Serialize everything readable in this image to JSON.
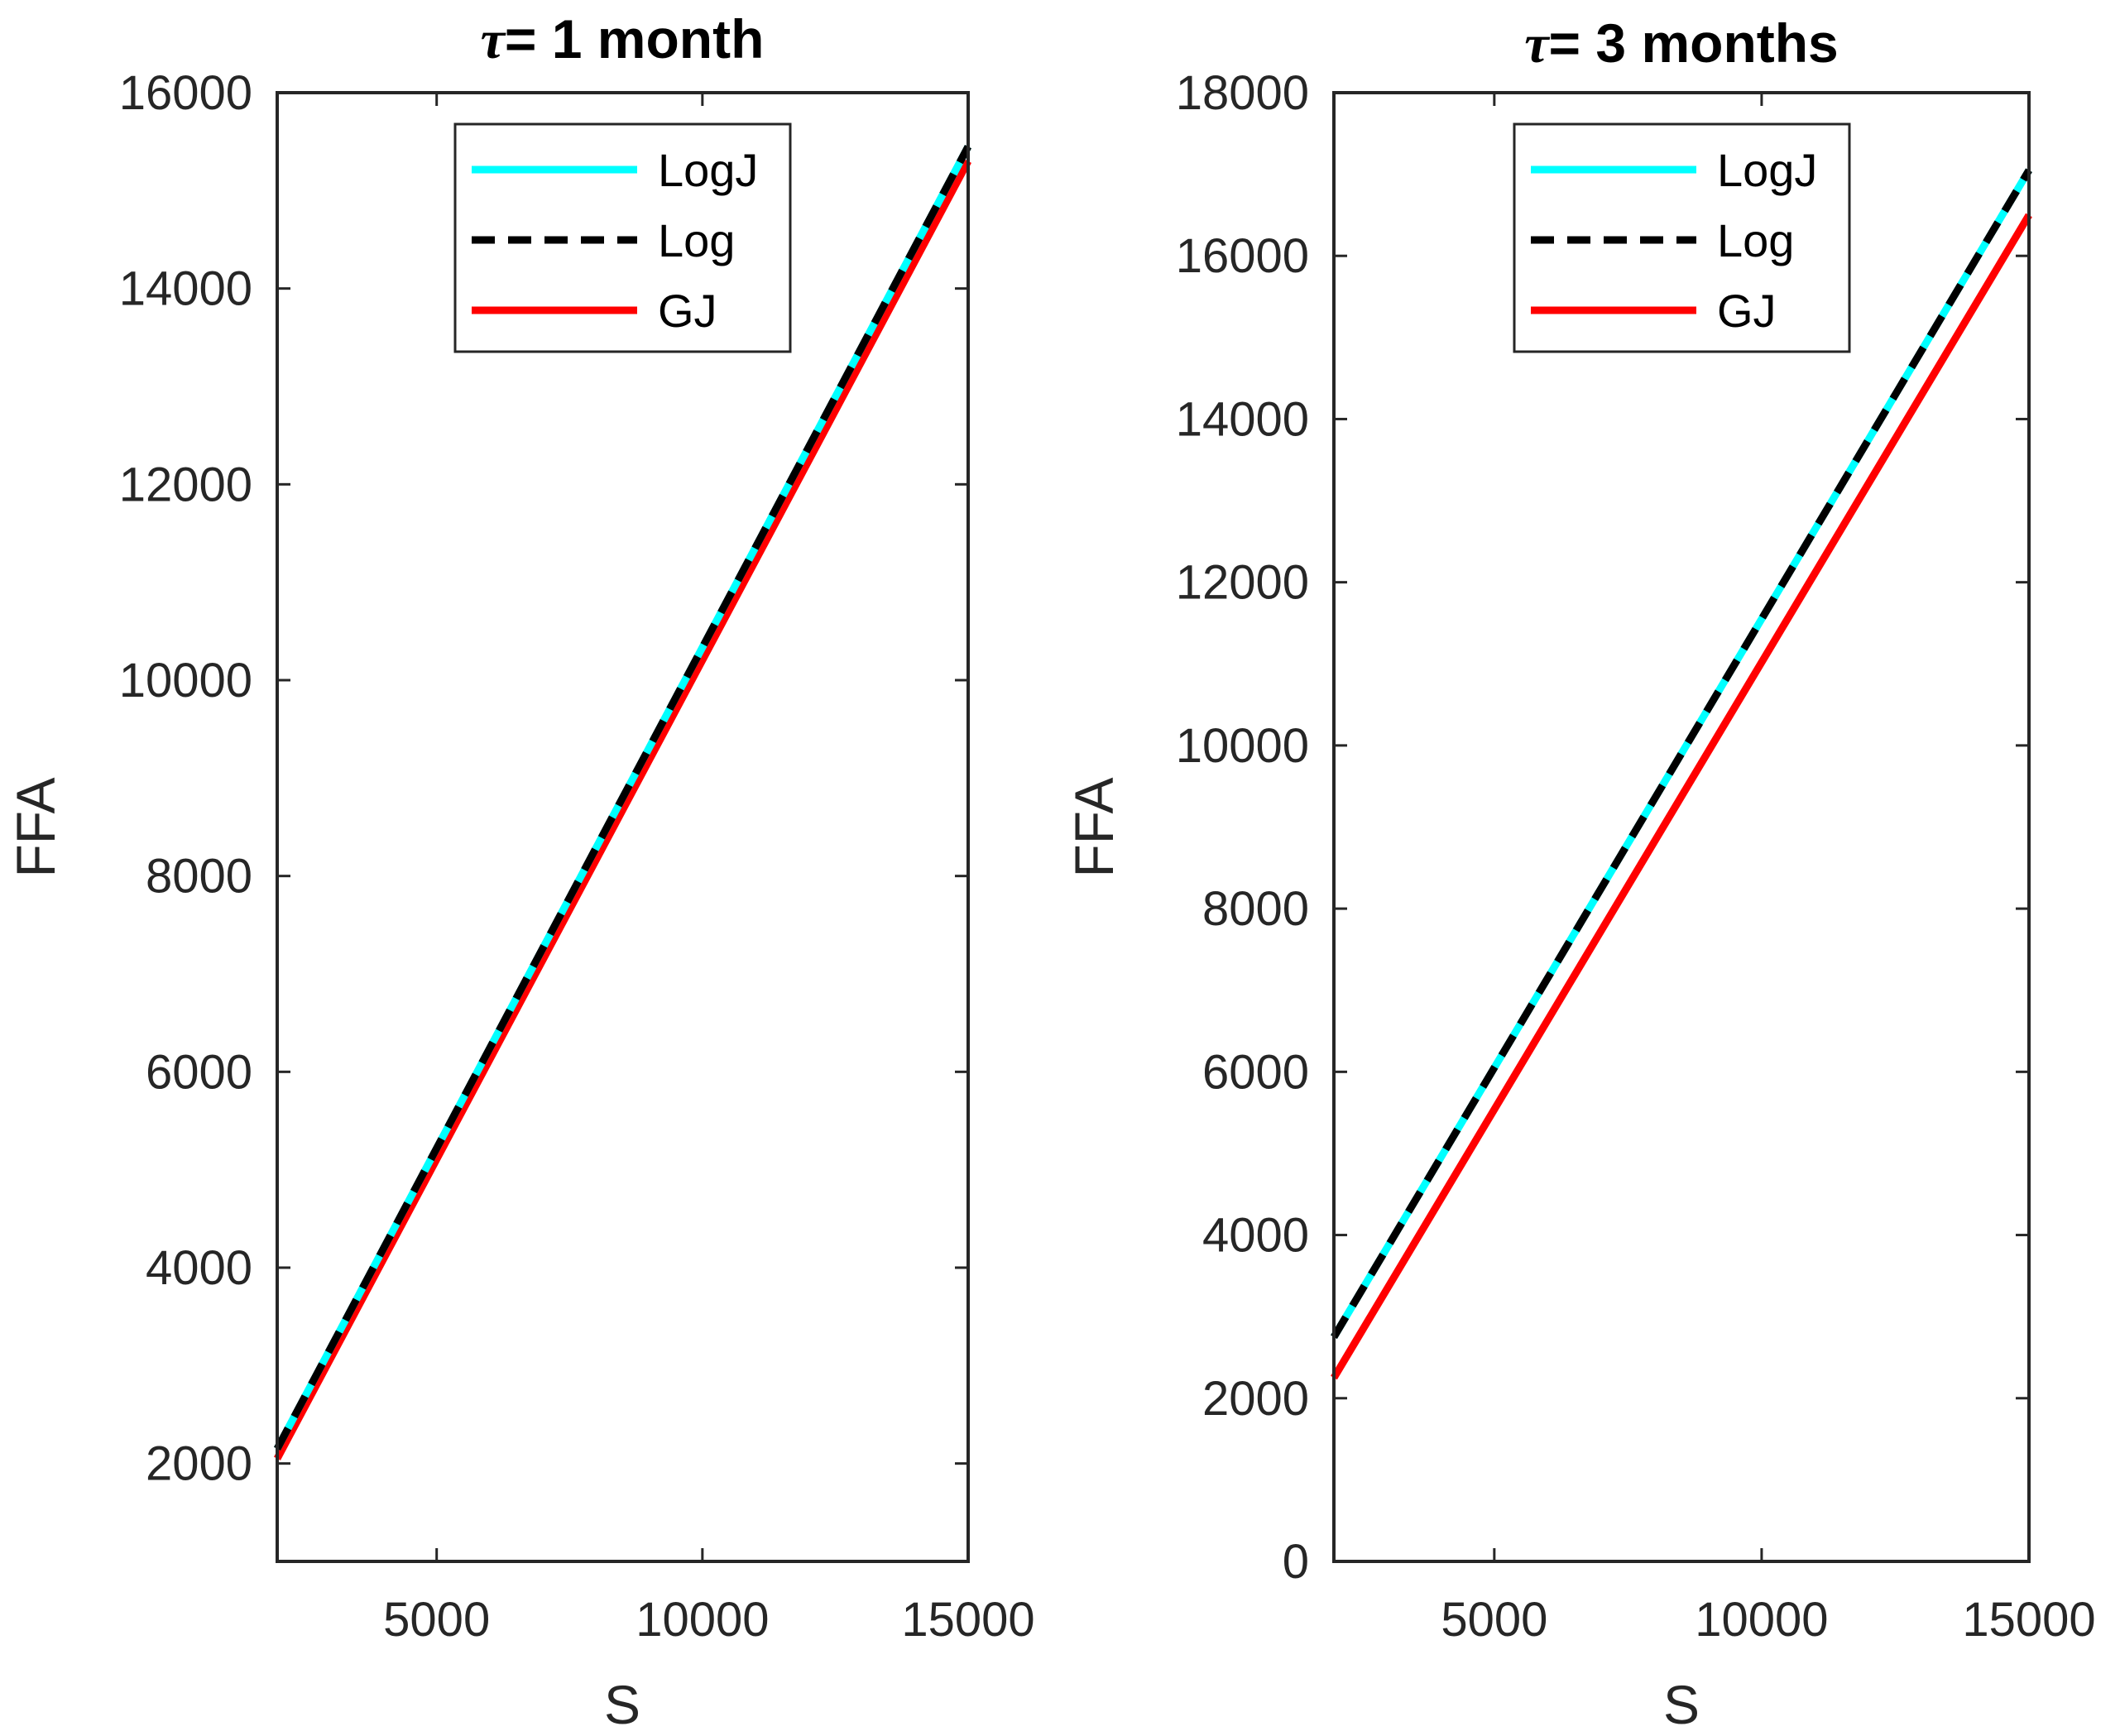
{
  "chart_data": [
    {
      "type": "line",
      "title_symbol": "τ",
      "title_text": "= 1 month",
      "xlabel": "S",
      "ylabel": "FFA",
      "xlim": [
        2000,
        15000
      ],
      "ylim": [
        1000,
        16000
      ],
      "xticks": [
        5000,
        10000,
        15000
      ],
      "yticks": [
        2000,
        4000,
        6000,
        8000,
        10000,
        12000,
        14000,
        16000
      ],
      "x": [
        2000,
        15000
      ],
      "series": [
        {
          "name": "LogJ",
          "color": "#00FFFF",
          "style": "solid",
          "values": [
            2150,
            15450
          ]
        },
        {
          "name": "Log",
          "color": "#000000",
          "style": "dashed",
          "values": [
            2150,
            15450
          ]
        },
        {
          "name": "GJ",
          "color": "#FF0000",
          "style": "solid",
          "values": [
            2050,
            15300
          ]
        }
      ],
      "legend_location": "top-right"
    },
    {
      "type": "line",
      "title_symbol": "τ",
      "title_text": "= 3 months",
      "xlabel": "S",
      "ylabel": "FFA",
      "xlim": [
        2000,
        15000
      ],
      "ylim": [
        0,
        18000
      ],
      "xticks": [
        5000,
        10000,
        15000
      ],
      "yticks": [
        0,
        2000,
        4000,
        6000,
        8000,
        10000,
        12000,
        14000,
        16000,
        18000
      ],
      "x": [
        2000,
        15000
      ],
      "series": [
        {
          "name": "LogJ",
          "color": "#00FFFF",
          "style": "solid",
          "values": [
            2750,
            17050
          ]
        },
        {
          "name": "Log",
          "color": "#000000",
          "style": "dashed",
          "values": [
            2750,
            17050
          ]
        },
        {
          "name": "GJ",
          "color": "#FF0000",
          "style": "solid",
          "values": [
            2250,
            16500
          ]
        }
      ],
      "legend_location": "top-right"
    }
  ]
}
